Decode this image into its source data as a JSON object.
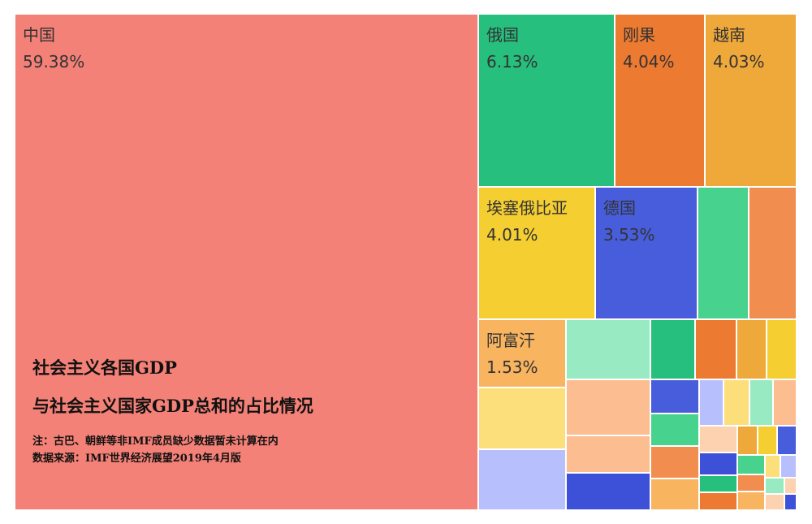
{
  "chart_data": {
    "type": "treemap",
    "title_line1": "社会主义各国GDP",
    "title_line2": "与社会主义国家GDP总和的占比情况",
    "note": "注：古巴、朝鲜等非IMF成员缺少数据暂未计算在内",
    "source": "数据来源：IMF世界经济展望2019年4月版",
    "cells": [
      {
        "name": "中国",
        "value": "59.38%",
        "color": "#f48177",
        "labeled": true
      },
      {
        "name": "俄国",
        "value": "6.13%",
        "color": "#27bf7e",
        "labeled": true
      },
      {
        "name": "刚果",
        "value": "4.04%",
        "color": "#ec7a30",
        "labeled": true
      },
      {
        "name": "越南",
        "value": "4.03%",
        "color": "#efa93a",
        "labeled": true
      },
      {
        "name": "埃塞俄比亚",
        "value": "4.01%",
        "color": "#f5ce32",
        "labeled": true
      },
      {
        "name": "德国",
        "value": "3.53%",
        "color": "#475ddb",
        "labeled": true
      },
      {
        "name": "阿富汗",
        "value": "1.53%",
        "color": "#f8b45f",
        "labeled": true
      }
    ],
    "unlabeled_colors": [
      "#47d28e",
      "#f18d4e",
      "#98eac2",
      "#27bf7e",
      "#ec7a30",
      "#efa93a",
      "#f5ce32",
      "#fcdf7b",
      "#fcbd90",
      "#fcbd90",
      "#b7c0fc",
      "#3c50d8",
      "#475ddb",
      "#47d28e",
      "#f18d4e",
      "#f8b45f",
      "#b7c0fc",
      "#fcdf7b",
      "#98eac2",
      "#fcbd90",
      "#fcd2b0",
      "#efa93a",
      "#f5ce32",
      "#475ddb",
      "#3c50d8",
      "#47d28e",
      "#fcdf7b",
      "#b7c0fc",
      "#27bf7e",
      "#f18d4e",
      "#98eac2",
      "#fcd2b0",
      "#ec7a30",
      "#f8b45f",
      "#fcd2b0",
      "#3c50d8"
    ]
  }
}
